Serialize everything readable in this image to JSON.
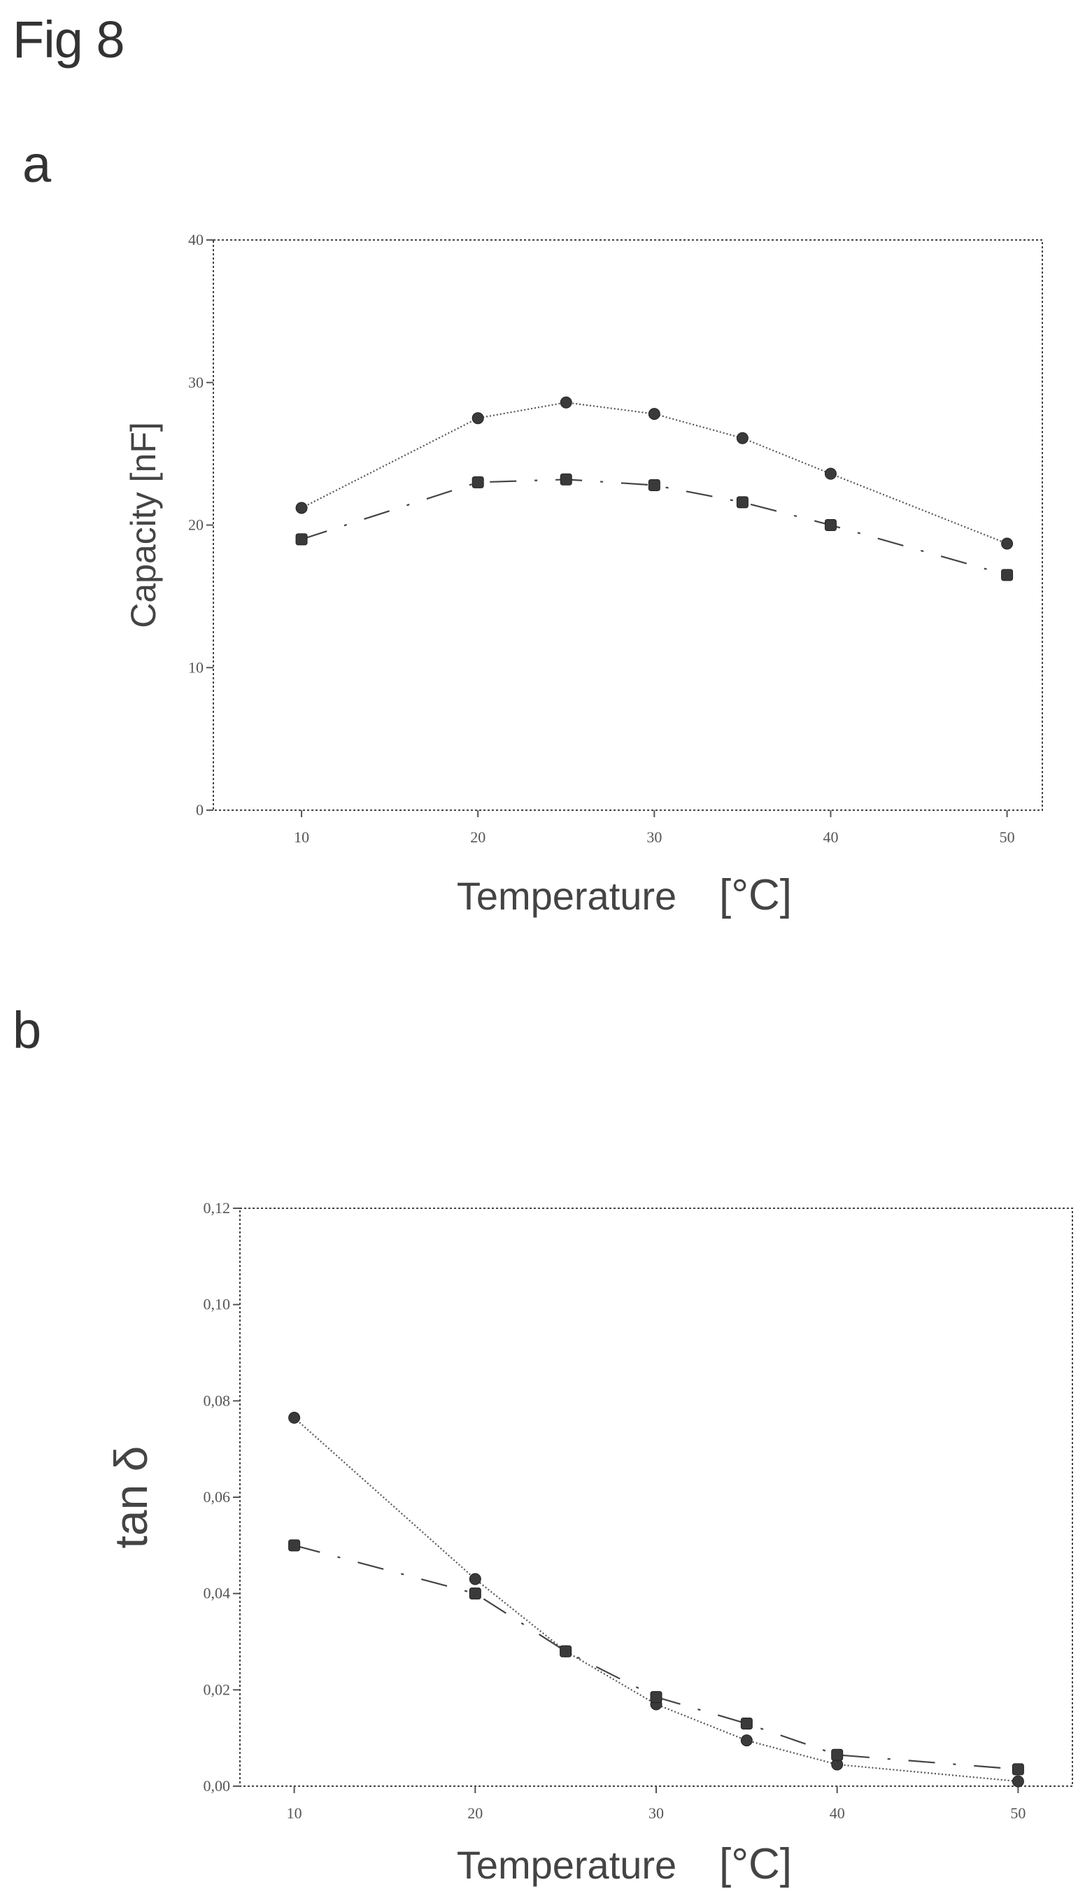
{
  "figure": {
    "title": "Fig 8",
    "panel_labels": [
      "a",
      "b"
    ]
  },
  "chart_data": [
    {
      "type": "line",
      "panel": "a",
      "title": "",
      "xlabel": "Temperature",
      "xunit": "[°C]",
      "ylabel": "Capacity [nF]",
      "ylim": [
        0,
        40
      ],
      "yticks": [
        "0",
        "10",
        "20",
        "30",
        "40"
      ],
      "x": [
        10,
        20,
        25,
        30,
        35,
        40,
        50
      ],
      "xtick_labels": [
        "10",
        "20",
        "30",
        "40",
        "50"
      ],
      "xtick_values": [
        10,
        20,
        30,
        40,
        50
      ],
      "grid": false,
      "series": [
        {
          "style": "dotted",
          "marker": "circle",
          "values": [
            21.2,
            27.5,
            28.6,
            27.8,
            26.1,
            23.6,
            18.7
          ]
        },
        {
          "style": "dashed",
          "marker": "square",
          "values": [
            19.0,
            23.0,
            23.2,
            22.8,
            21.6,
            20.0,
            16.5
          ]
        }
      ]
    },
    {
      "type": "line",
      "panel": "b",
      "title": "",
      "xlabel": "Temperature",
      "xunit": "[°C]",
      "ylabel": "tan δ",
      "ylim": [
        0,
        0.12
      ],
      "yticks": [
        "0,00",
        "0,02",
        "0,04",
        "0,06",
        "0,08",
        "0,10",
        "0,12"
      ],
      "x": [
        10,
        20,
        25,
        30,
        35,
        40,
        50
      ],
      "xtick_labels": [
        "10",
        "20",
        "30",
        "40",
        "50"
      ],
      "xtick_values": [
        10,
        20,
        30,
        40,
        50
      ],
      "grid": false,
      "series": [
        {
          "style": "dotted",
          "marker": "circle",
          "values": [
            0.0765,
            0.043,
            0.028,
            0.017,
            0.0095,
            0.0045,
            0.001
          ]
        },
        {
          "style": "dashed",
          "marker": "square",
          "values": [
            0.05,
            0.04,
            0.028,
            0.0185,
            0.013,
            0.0065,
            0.0035
          ]
        }
      ]
    }
  ]
}
